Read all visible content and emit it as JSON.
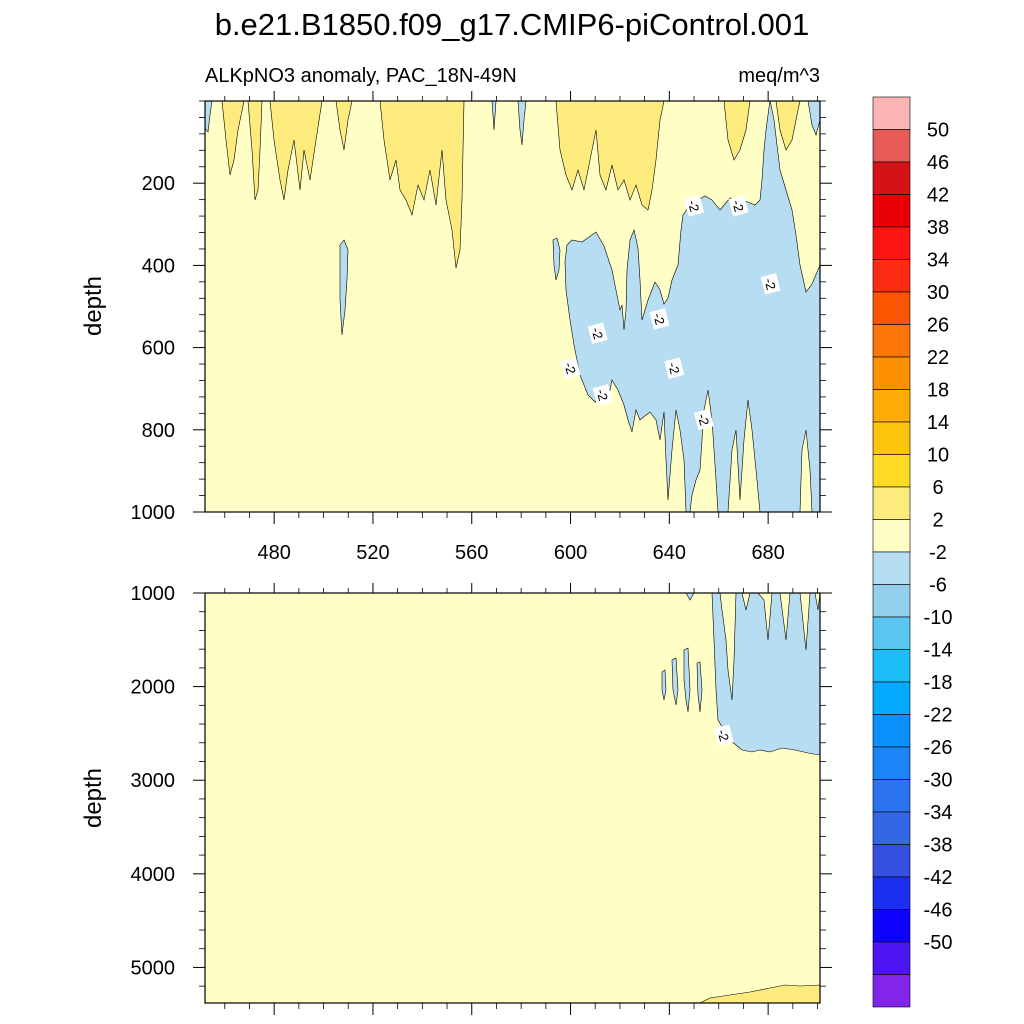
{
  "chart_data": {
    "type": "contour",
    "title": "b.e21.B1850.f09_g17.CMIP6-piControl.001",
    "subtitle_left": "ALKpNO3 anomaly, PAC_18N-49N",
    "subtitle_right": "meq/m^3",
    "xlabel": "",
    "ylabel": "depth",
    "xlim": [
      452,
      701
    ],
    "x_ticks": [
      480,
      520,
      560,
      600,
      640,
      680
    ],
    "panels": [
      {
        "name": "upper",
        "ylim": [
          0,
          1000
        ],
        "y_ticks": [
          200,
          400,
          600,
          800,
          1000
        ],
        "contour_labels": [
          {
            "text": "-2",
            "x": 600,
            "y": 650
          },
          {
            "text": "-2",
            "x": 611,
            "y": 565
          },
          {
            "text": "-2",
            "x": 613,
            "y": 715
          },
          {
            "text": "-2",
            "x": 636,
            "y": 530
          },
          {
            "text": "-2",
            "x": 642,
            "y": 650
          },
          {
            "text": "-2",
            "x": 650,
            "y": 255
          },
          {
            "text": "-2",
            "x": 654,
            "y": 775
          },
          {
            "text": "-2",
            "x": 668,
            "y": 255
          },
          {
            "text": "-2",
            "x": 681,
            "y": 445
          }
        ]
      },
      {
        "name": "lower",
        "ylim": [
          1000,
          5380
        ],
        "y_ticks": [
          1000,
          2000,
          3000,
          4000,
          5000
        ],
        "contour_labels": [
          {
            "text": "-2",
            "x": 662,
            "y": 2520
          }
        ]
      }
    ],
    "colorbar": {
      "labels": [
        "50",
        "46",
        "42",
        "38",
        "34",
        "30",
        "26",
        "22",
        "18",
        "14",
        "10",
        "6",
        "2",
        "-2",
        "-6",
        "-10",
        "-14",
        "-18",
        "-22",
        "-26",
        "-30",
        "-34",
        "-38",
        "-42",
        "-46",
        "-50"
      ],
      "colors": [
        "#fdb4b4",
        "#e65a57",
        "#d31316",
        "#e80009",
        "#ff1414",
        "#fe2b13",
        "#fc5502",
        "#fe7607",
        "#fd9000",
        "#fdac07",
        "#fdc40d",
        "#ffdb26",
        "#fdeb7e",
        "#fffec4",
        "#b6ddf2",
        "#94cfec",
        "#5ac5f1",
        "#1cbef8",
        "#03aaff",
        "#0c90fd",
        "#1b85f8",
        "#2c73ef",
        "#3566e6",
        "#3550e1",
        "#1b2ff0",
        "#0c02fd",
        "#4b16f1",
        "#8125e9"
      ]
    },
    "fill_colors": {
      "background": "#fffec4",
      "positive_2_6": "#fdeb7e",
      "negative_m6_m2": "#b6ddf2"
    }
  }
}
